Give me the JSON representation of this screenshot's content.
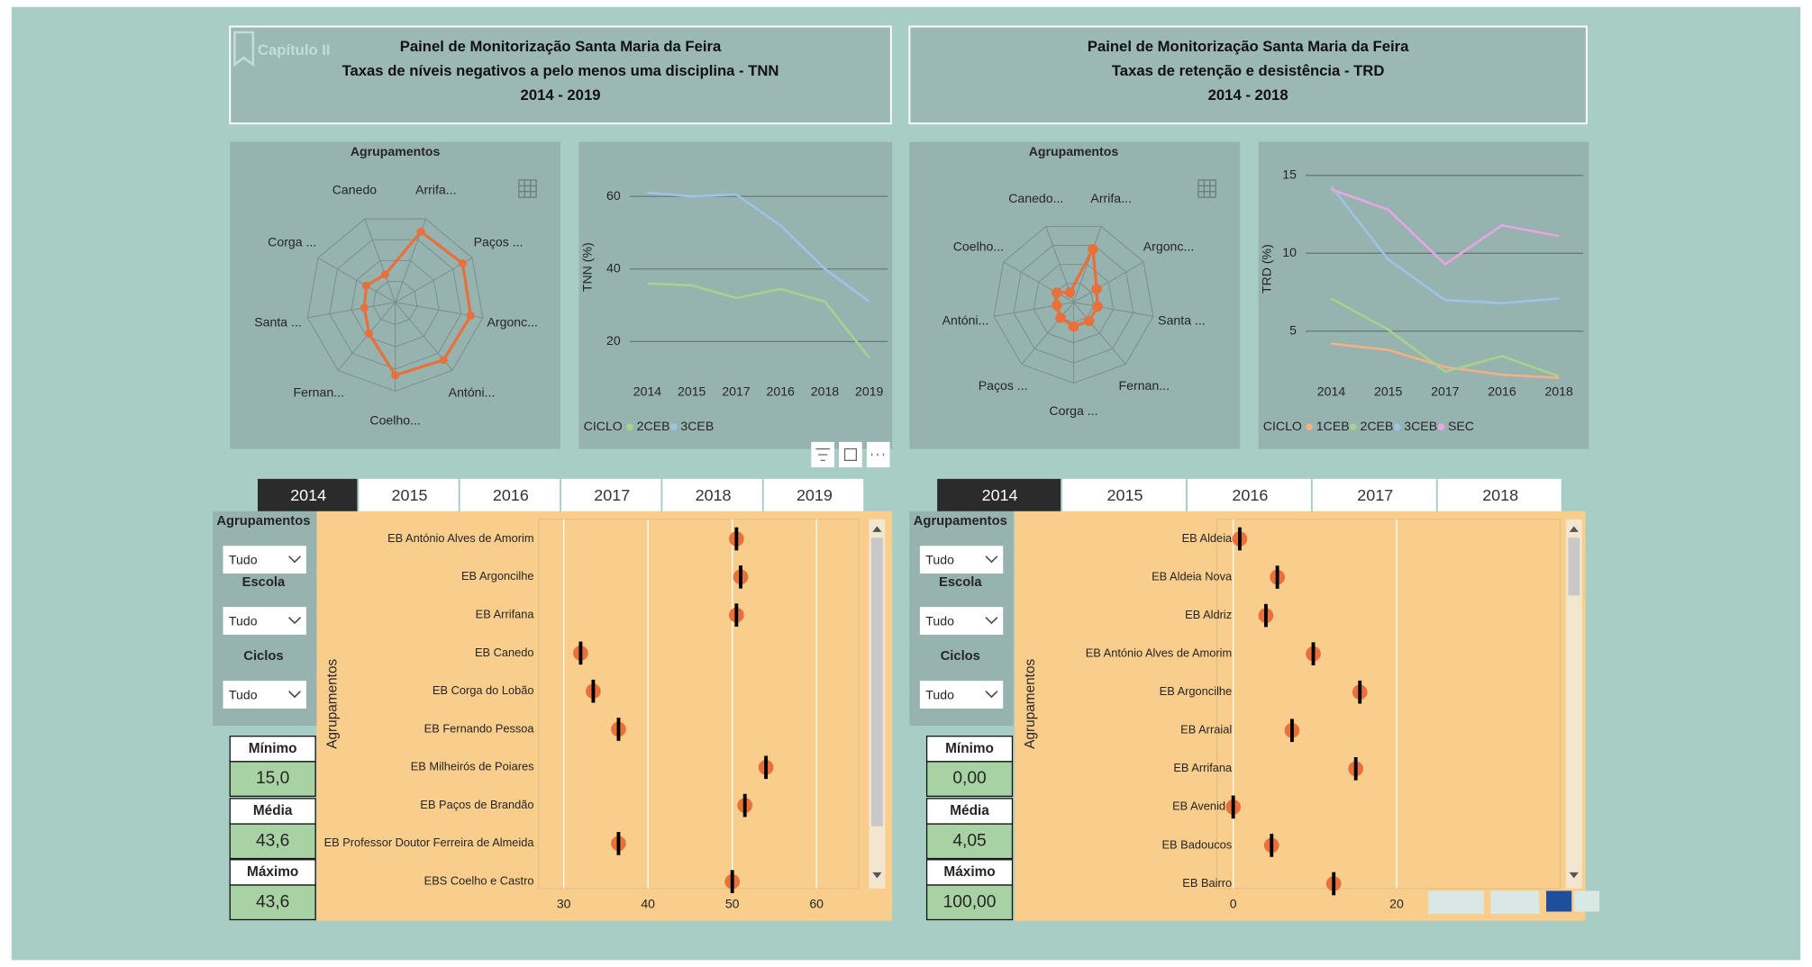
{
  "header_left": {
    "logo": "Capítulo II",
    "title": "Painel de Monitorização Santa Maria da Feira",
    "subtitle": "Taxas de níveis negativos a pelo menos uma disciplina - TNN",
    "period": "2014 - 2019"
  },
  "header_right": {
    "title": "Painel de Monitorização Santa Maria da Feira",
    "subtitle": "Taxas de retenção e desistência - TRD",
    "period": "2014 - 2018"
  },
  "chart_data": [
    {
      "type": "radar",
      "title": "Agrupamentos",
      "color": "#e8703a",
      "categories": [
        "Arrifa...",
        "Paços ...",
        "Argonc...",
        "Antóni...",
        "Coelho...",
        "Fernan...",
        "Santa ...",
        "Corga ...",
        "Canedo"
      ],
      "values": [
        50.5,
        51.5,
        51,
        50.5,
        49.5,
        36.5,
        32.7,
        33.5,
        32
      ],
      "rlim": [
        20,
        56
      ]
    },
    {
      "type": "line",
      "ylabel": "TNN (%)",
      "legend_title": "CICLO",
      "categories": [
        "2014",
        "2015",
        "2017",
        "2016",
        "2018",
        "2019"
      ],
      "series": [
        {
          "name": "2CEB",
          "color": "#a9d18e",
          "values": [
            36,
            35.5,
            32,
            34.5,
            31,
            15.5
          ]
        },
        {
          "name": "3CEB",
          "color": "#9dc3e6",
          "values": [
            61,
            60,
            60.5,
            52,
            40,
            31
          ]
        }
      ],
      "ylim": [
        13,
        68
      ],
      "yticks": [
        20,
        40,
        60
      ],
      "grid": true
    },
    {
      "type": "dot",
      "ylabel": "Agrupamentos",
      "color": "#e8703a",
      "categories": [
        "EB António Alves de Amorim",
        "EB Argoncilhe",
        "EB Arrifana",
        "EB Canedo",
        "EB Corga do Lobão",
        "EB Fernando Pessoa",
        "EB Milheirós de Poiares",
        "EB Paços de Brandão",
        "EB Professor Doutor Ferreira de Almeida",
        "EBS Coelho e Castro"
      ],
      "values": [
        50.5,
        51,
        50.5,
        32,
        33.5,
        36.5,
        54,
        51.5,
        36.5,
        50
      ],
      "xlim": [
        27,
        65
      ],
      "xticks": [
        30,
        40,
        50,
        60
      ],
      "grid": true
    },
    {
      "type": "radar",
      "title": "Agrupamentos",
      "color": "#e8703a",
      "categories": [
        "Arrifa...",
        "Argonc...",
        "Santa ...",
        "Fernan...",
        "Corga ...",
        "Paços ...",
        "Antóni...",
        "Coelho...",
        "Canedo..."
      ],
      "values": [
        14,
        6.6,
        6,
        6,
        6,
        5,
        4.2,
        4.8,
        2.6
      ],
      "rlim": [
        0,
        20
      ]
    },
    {
      "type": "line",
      "ylabel": "TRD (%)",
      "legend_title": "CICLO",
      "categories": [
        "2014",
        "2015",
        "2017",
        "2016",
        "2018"
      ],
      "series": [
        {
          "name": "1CEB",
          "color": "#f4b183",
          "values": [
            4.2,
            3.8,
            2.7,
            2.2,
            2.0
          ]
        },
        {
          "name": "2CEB",
          "color": "#a9d18e",
          "values": [
            7.1,
            5.1,
            2.4,
            3.4,
            2.1
          ]
        },
        {
          "name": "3CEB",
          "color": "#9dc3e6",
          "values": [
            14.3,
            9.6,
            7.0,
            6.8,
            7.1
          ]
        },
        {
          "name": "SEC",
          "color": "#e7a6e3",
          "values": [
            14.1,
            12.8,
            9.3,
            11.8,
            11.1
          ]
        }
      ],
      "ylim": [
        2,
        16
      ],
      "yticks": [
        5,
        10,
        15
      ],
      "grid": true
    },
    {
      "type": "dot",
      "ylabel": "Agrupamentos",
      "color": "#e8703a",
      "categories": [
        "EB Aldeia",
        "EB Aldeia Nova",
        "EB Aldriz",
        "EB António Alves de Amorim",
        "EB Argoncilhe",
        "EB Arraial",
        "EB Arrifana",
        "EB Avenida",
        "EB Badoucos",
        "EB Bairro"
      ],
      "values": [
        0.8,
        5.4,
        4,
        9.8,
        15.5,
        7.2,
        15,
        0,
        4.7,
        12.3
      ],
      "xlim": [
        -2,
        40
      ],
      "xticks": [
        0,
        20
      ],
      "grid": true
    }
  ],
  "tabs_left": [
    "2014",
    "2015",
    "2016",
    "2017",
    "2018",
    "2019"
  ],
  "tabs_right": [
    "2014",
    "2015",
    "2016",
    "2017",
    "2018"
  ],
  "slicers_left": [
    {
      "label": "Agrupamentos",
      "value": "Tudo"
    },
    {
      "label": "Escola",
      "value": "Tudo"
    },
    {
      "label": "Ciclos",
      "value": "Tudo"
    }
  ],
  "slicers_right": [
    {
      "label": "Agrupamentos",
      "value": "Tudo"
    },
    {
      "label": "Escola",
      "value": "Tudo"
    },
    {
      "label": "Ciclos",
      "value": "Tudo"
    }
  ],
  "kpis_left": [
    {
      "label": "Mínimo",
      "value": "15,0"
    },
    {
      "label": "Média",
      "value": "43,6"
    },
    {
      "label": "Máximo",
      "value": "43,6"
    }
  ],
  "kpis_right": [
    {
      "label": "Mínimo",
      "value": "0,00"
    },
    {
      "label": "Média",
      "value": "4,05"
    },
    {
      "label": "Máximo",
      "value": "100,00"
    }
  ]
}
